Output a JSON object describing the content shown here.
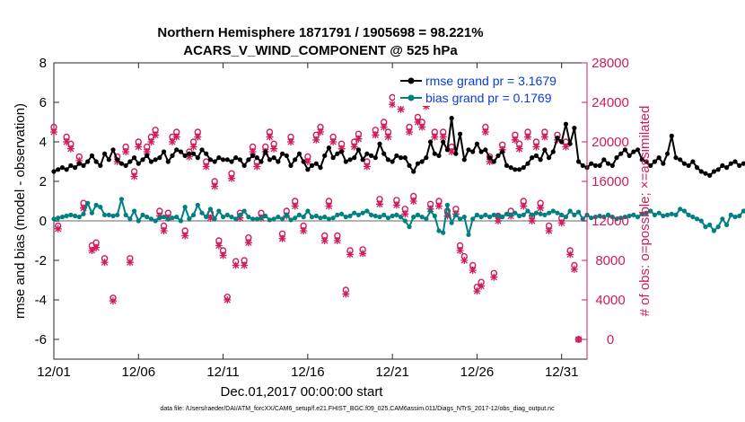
{
  "chart_data": {
    "type": "line",
    "title_line1": "Northern Hemisphere 1871791 / 1905698 = 98.221%",
    "title_line2": "ACARS_V_WIND_COMPONENT @ 525 hPa",
    "xlabel": "Dec.01,2017 00:00:00 start",
    "ylabel_left": "rmse and bias (model - observation)",
    "ylabel_right": "# of obs: o=possible; ×=assimilated",
    "footer": "data file: /Users/raeder/DAI/ATM_forcXX/CAM6_setup/f.e21.FHIST_BGC.f09_025.CAM6assim.011/Diags_NTrS_2017-12/obs_diag_output.nc",
    "xlim": [
      0,
      31.5
    ],
    "ylim_left": [
      -7,
      8
    ],
    "ylim_right": [
      -2000,
      28000
    ],
    "x_ticks": [
      0,
      5,
      10,
      15,
      20,
      25,
      30
    ],
    "x_tick_labels": [
      "12/01",
      "12/06",
      "12/11",
      "12/16",
      "12/21",
      "12/26",
      "12/31"
    ],
    "y_left_ticks": [
      -6,
      -4,
      -2,
      0,
      2,
      4,
      6,
      8
    ],
    "y_left_tick_labels": [
      "-6",
      "-4",
      "-2",
      "0",
      "2",
      "4",
      "6",
      "8"
    ],
    "y_right_ticks": [
      0,
      4000,
      8000,
      12000,
      16000,
      20000,
      24000,
      28000
    ],
    "y_right_tick_labels": [
      "0",
      "4000",
      "8000",
      "12000",
      "16000",
      "20000",
      "24000",
      "28000"
    ],
    "x_step_days": 0.25,
    "legend": [
      {
        "name": "rmse grand pr = 3.1679",
        "color": "#000000"
      },
      {
        "name": "bias grand pr = 0.1769",
        "color": "#008080"
      }
    ],
    "colors": {
      "rmse": "#000000",
      "bias": "#008080",
      "obs": "#d01c5c",
      "zero_line": "#b3b3b3",
      "axis_left": "#000000",
      "axis_right": "#d01c5c",
      "legend_text": "#0a3cd8"
    },
    "series": [
      {
        "name": "rmse",
        "values": [
          2.5,
          2.6,
          2.7,
          2.6,
          2.8,
          2.7,
          2.9,
          2.8,
          3.0,
          3.3,
          3.0,
          2.8,
          3.4,
          3.1,
          3.6,
          3.1,
          2.9,
          2.8,
          3.0,
          3.2,
          2.9,
          3.1,
          3.3,
          3.0,
          3.1,
          3.2,
          3.5,
          3.0,
          3.3,
          3.6,
          3.5,
          3.3,
          3.4,
          3.4,
          3.2,
          3.6,
          3.4,
          3.1,
          3.0,
          3.2,
          3.1,
          3.1,
          3.0,
          3.2,
          3.1,
          2.8,
          3.1,
          3.3,
          3.2,
          3.0,
          3.5,
          3.1,
          3.2,
          3.0,
          3.4,
          3.3,
          2.8,
          3.1,
          3.4,
          3.0,
          2.6,
          2.8,
          2.9,
          2.7,
          3.3,
          3.7,
          3.2,
          3.4,
          3.5,
          3.0,
          3.1,
          3.2,
          3.6,
          3.1,
          3.4,
          3.3,
          3.2,
          3.9,
          3.4,
          3.1,
          3.0,
          3.3,
          3.2,
          3.2,
          2.8,
          2.5,
          2.9,
          3.0,
          3.2,
          4.0,
          3.4,
          3.3,
          4.0,
          3.6,
          5.2,
          3.4,
          4.4,
          3.1,
          3.6,
          3.5,
          3.9,
          3.5,
          3.6,
          3.2,
          3.0,
          3.3,
          3.5,
          2.8,
          2.7,
          2.6,
          2.6,
          2.7,
          2.9,
          3.2,
          3.3,
          3.1,
          3.6,
          3.2,
          3.5,
          4.2,
          4.0,
          4.9,
          3.9,
          4.7,
          3.0,
          2.8,
          2.7,
          2.9,
          2.8,
          2.8,
          3.1,
          2.9,
          2.8,
          3.2,
          3.4,
          3.6,
          3.3,
          3.5,
          3.6,
          3.1,
          3.0,
          2.8,
          3.0,
          3.2,
          2.9,
          3.4,
          4.3,
          3.2,
          3.1,
          2.9,
          2.8,
          3.0,
          2.7,
          2.5,
          2.4,
          2.3,
          2.5,
          2.6,
          2.8,
          2.7,
          2.9,
          3.0,
          2.8,
          2.9,
          3.1,
          3.0,
          2.9,
          3.1,
          3.0,
          3.2,
          3.3,
          3.1,
          2.9,
          3.0,
          3.1,
          2.8,
          2.9,
          3.4,
          3.2,
          3.0,
          2.8,
          3.1,
          3.0,
          3.3,
          2.9,
          3.0,
          2.8,
          2.7,
          2.9,
          2.8,
          3.6,
          2.7
        ]
      },
      {
        "name": "bias",
        "values": [
          0.1,
          0.15,
          0.2,
          0.25,
          0.3,
          0.25,
          0.2,
          0.35,
          0.9,
          0.4,
          0.8,
          0.7,
          0.3,
          0.3,
          0.25,
          0.3,
          1.1,
          0.3,
          0.1,
          0.5,
          0.0,
          0.3,
          0.2,
          0.1,
          0.0,
          0.15,
          0.2,
          0.1,
          0.15,
          0.2,
          0.0,
          0.7,
          0.1,
          0.3,
          0.8,
          0.4,
          0.2,
          0.6,
          0.1,
          0.5,
          0.2,
          0.3,
          0.2,
          0.1,
          0.3,
          0.5,
          0.2,
          0.1,
          0.1,
          0.15,
          0.25,
          0.05,
          0.1,
          0.2,
          0.1,
          0.3,
          0.05,
          0.15,
          0.3,
          0.2,
          0.5,
          0.2,
          0.25,
          0.15,
          0.2,
          0.1,
          0.15,
          0.3,
          0.35,
          0.2,
          0.25,
          0.4,
          0.3,
          0.4,
          0.5,
          0.3,
          0.25,
          0.2,
          0.3,
          0.15,
          0.25,
          0.3,
          0.2,
          0.0,
          -0.3,
          0.2,
          0.3,
          0.2,
          0.1,
          0.5,
          0.25,
          -0.5,
          -0.6,
          0.8,
          -0.1,
          0.3,
          0.1,
          0.2,
          -0.7,
          0.1,
          0.3,
          0.2,
          0.3,
          0.2,
          0.3,
          0.25,
          0.2,
          0.35,
          0.3,
          0.4,
          0.25,
          0.3,
          0.5,
          0.3,
          0.4,
          0.35,
          0.3,
          0.4,
          0.5,
          0.4,
          0.3,
          0.2,
          0.5,
          0.3,
          0.45,
          0.1,
          0.3,
          0.15,
          0.2,
          0.25,
          0.2,
          0.3,
          0.2,
          0.1,
          0.15,
          0.2,
          0.25,
          0.3,
          0.2,
          0.35,
          0.4,
          0.5,
          0.3,
          0.4,
          0.25,
          0.3,
          0.35,
          0.3,
          0.6,
          0.5,
          0.3,
          0.2,
          0.1,
          0.0,
          -0.3,
          -0.2,
          -0.5,
          -0.3,
          0.1,
          -0.2,
          0.3,
          0.2,
          0.25,
          0.5,
          0.3,
          0.2,
          0.35,
          0.4,
          0.3,
          0.45,
          0.2,
          0.3,
          0.4,
          0.3,
          0.3,
          0.2,
          0.25,
          0.4,
          0.3,
          0.2,
          0.1,
          0.5,
          0.3,
          0.5,
          0.4,
          0.1,
          0.3,
          0.15,
          0.2,
          0.3,
          0.0,
          0.2
        ]
      }
    ],
    "obs_possible": [
      {
        "x": 0.0,
        "y": 21500
      },
      {
        "x": 0.25,
        "y": 11500
      },
      {
        "x": 0.75,
        "y": 20500
      },
      {
        "x": 1.0,
        "y": 19800
      },
      {
        "x": 1.5,
        "y": 18500
      },
      {
        "x": 1.75,
        "y": 13800
      },
      {
        "x": 2.25,
        "y": 9500
      },
      {
        "x": 2.5,
        "y": 9800
      },
      {
        "x": 3.0,
        "y": 8200
      },
      {
        "x": 3.5,
        "y": 4200
      },
      {
        "x": 3.75,
        "y": 18500
      },
      {
        "x": 4.25,
        "y": 19500
      },
      {
        "x": 4.5,
        "y": 8200
      },
      {
        "x": 4.75,
        "y": 17000
      },
      {
        "x": 5.0,
        "y": 20000
      },
      {
        "x": 5.5,
        "y": 19500
      },
      {
        "x": 5.75,
        "y": 20500
      },
      {
        "x": 6.0,
        "y": 21200
      },
      {
        "x": 6.25,
        "y": 13000
      },
      {
        "x": 6.5,
        "y": 11500
      },
      {
        "x": 6.75,
        "y": 12800
      },
      {
        "x": 7.0,
        "y": 20500
      },
      {
        "x": 7.25,
        "y": 21000
      },
      {
        "x": 7.75,
        "y": 11000
      },
      {
        "x": 8.0,
        "y": 19000
      },
      {
        "x": 8.25,
        "y": 20000
      },
      {
        "x": 8.5,
        "y": 21000
      },
      {
        "x": 9.0,
        "y": 18000
      },
      {
        "x": 9.25,
        "y": 12800
      },
      {
        "x": 9.5,
        "y": 16000
      },
      {
        "x": 9.75,
        "y": 10000
      },
      {
        "x": 10.0,
        "y": 9000
      },
      {
        "x": 10.25,
        "y": 4300
      },
      {
        "x": 10.5,
        "y": 16800
      },
      {
        "x": 10.75,
        "y": 7900
      },
      {
        "x": 11.0,
        "y": 12800
      },
      {
        "x": 11.25,
        "y": 8000
      },
      {
        "x": 11.5,
        "y": 10300
      },
      {
        "x": 11.75,
        "y": 19500
      },
      {
        "x": 12.0,
        "y": 18000
      },
      {
        "x": 12.25,
        "y": 12800
      },
      {
        "x": 12.5,
        "y": 19500
      },
      {
        "x": 12.75,
        "y": 21000
      },
      {
        "x": 13.0,
        "y": 19800
      },
      {
        "x": 13.5,
        "y": 10700
      },
      {
        "x": 13.75,
        "y": 13000
      },
      {
        "x": 14.0,
        "y": 20500
      },
      {
        "x": 14.25,
        "y": 14000
      },
      {
        "x": 14.75,
        "y": 11500
      },
      {
        "x": 15.0,
        "y": 18500
      },
      {
        "x": 15.5,
        "y": 20700
      },
      {
        "x": 15.75,
        "y": 21500
      },
      {
        "x": 16.0,
        "y": 10500
      },
      {
        "x": 16.25,
        "y": 14000
      },
      {
        "x": 16.5,
        "y": 20500
      },
      {
        "x": 16.75,
        "y": 10500
      },
      {
        "x": 17.0,
        "y": 19800
      },
      {
        "x": 17.25,
        "y": 5000
      },
      {
        "x": 17.5,
        "y": 9000
      },
      {
        "x": 17.75,
        "y": 20000
      },
      {
        "x": 18.0,
        "y": 20800
      },
      {
        "x": 18.25,
        "y": 9100
      },
      {
        "x": 18.5,
        "y": 18000
      },
      {
        "x": 19.0,
        "y": 21200
      },
      {
        "x": 19.25,
        "y": 14200
      },
      {
        "x": 19.5,
        "y": 22000
      },
      {
        "x": 19.75,
        "y": 21000
      },
      {
        "x": 20.0,
        "y": 24500
      },
      {
        "x": 20.25,
        "y": 14100
      },
      {
        "x": 20.5,
        "y": 24000
      },
      {
        "x": 20.75,
        "y": 13200
      },
      {
        "x": 21.0,
        "y": 21500
      },
      {
        "x": 21.25,
        "y": 14500
      },
      {
        "x": 21.5,
        "y": 22500
      },
      {
        "x": 21.75,
        "y": 22000
      },
      {
        "x": 22.0,
        "y": 24300
      },
      {
        "x": 22.25,
        "y": 13700
      },
      {
        "x": 22.5,
        "y": 21000
      },
      {
        "x": 22.75,
        "y": 14000
      },
      {
        "x": 23.0,
        "y": 21000
      },
      {
        "x": 23.25,
        "y": 13000
      },
      {
        "x": 23.5,
        "y": 19500
      },
      {
        "x": 23.75,
        "y": 13200
      },
      {
        "x": 24.0,
        "y": 9500
      },
      {
        "x": 24.25,
        "y": 8400
      },
      {
        "x": 24.75,
        "y": 7500
      },
      {
        "x": 25.0,
        "y": 5300
      },
      {
        "x": 25.25,
        "y": 5800
      },
      {
        "x": 25.5,
        "y": 21500
      },
      {
        "x": 25.75,
        "y": 18500
      },
      {
        "x": 26.0,
        "y": 6700
      },
      {
        "x": 26.25,
        "y": 12500
      },
      {
        "x": 26.5,
        "y": 19700
      },
      {
        "x": 27.0,
        "y": 13000
      },
      {
        "x": 27.25,
        "y": 20700
      },
      {
        "x": 27.5,
        "y": 19800
      },
      {
        "x": 27.75,
        "y": 14000
      },
      {
        "x": 28.0,
        "y": 21000
      },
      {
        "x": 28.25,
        "y": 12500
      },
      {
        "x": 28.5,
        "y": 20000
      },
      {
        "x": 28.75,
        "y": 13800
      },
      {
        "x": 29.0,
        "y": 21000
      },
      {
        "x": 29.25,
        "y": 11500
      },
      {
        "x": 29.75,
        "y": 20700
      },
      {
        "x": 30.0,
        "y": 12300
      },
      {
        "x": 30.25,
        "y": 20000
      },
      {
        "x": 30.5,
        "y": 9000
      },
      {
        "x": 30.75,
        "y": 7500
      },
      {
        "x": 31.0,
        "y": 0
      }
    ],
    "obs_assimilated": [
      {
        "x": 0.0,
        "y": 21000
      },
      {
        "x": 0.25,
        "y": 11200
      },
      {
        "x": 0.75,
        "y": 20000
      },
      {
        "x": 1.0,
        "y": 19300
      },
      {
        "x": 1.5,
        "y": 18100
      },
      {
        "x": 1.75,
        "y": 13300
      },
      {
        "x": 2.25,
        "y": 9000
      },
      {
        "x": 2.5,
        "y": 9300
      },
      {
        "x": 3.0,
        "y": 7800
      },
      {
        "x": 3.5,
        "y": 3900
      },
      {
        "x": 3.75,
        "y": 18000
      },
      {
        "x": 4.25,
        "y": 19000
      },
      {
        "x": 4.5,
        "y": 7800
      },
      {
        "x": 4.75,
        "y": 16500
      },
      {
        "x": 5.0,
        "y": 19500
      },
      {
        "x": 5.5,
        "y": 19000
      },
      {
        "x": 5.75,
        "y": 20000
      },
      {
        "x": 6.0,
        "y": 20700
      },
      {
        "x": 6.25,
        "y": 12500
      },
      {
        "x": 6.5,
        "y": 11000
      },
      {
        "x": 6.75,
        "y": 12300
      },
      {
        "x": 7.0,
        "y": 20000
      },
      {
        "x": 7.25,
        "y": 20500
      },
      {
        "x": 7.75,
        "y": 10500
      },
      {
        "x": 8.0,
        "y": 18500
      },
      {
        "x": 8.25,
        "y": 19500
      },
      {
        "x": 8.5,
        "y": 20500
      },
      {
        "x": 9.0,
        "y": 17500
      },
      {
        "x": 9.25,
        "y": 12300
      },
      {
        "x": 9.5,
        "y": 15500
      },
      {
        "x": 9.75,
        "y": 9500
      },
      {
        "x": 10.0,
        "y": 8500
      },
      {
        "x": 10.25,
        "y": 4000
      },
      {
        "x": 10.5,
        "y": 16300
      },
      {
        "x": 10.75,
        "y": 7500
      },
      {
        "x": 11.0,
        "y": 12300
      },
      {
        "x": 11.25,
        "y": 7500
      },
      {
        "x": 11.5,
        "y": 9800
      },
      {
        "x": 11.75,
        "y": 19000
      },
      {
        "x": 12.0,
        "y": 17500
      },
      {
        "x": 12.25,
        "y": 12300
      },
      {
        "x": 12.5,
        "y": 19000
      },
      {
        "x": 12.75,
        "y": 20500
      },
      {
        "x": 13.0,
        "y": 19300
      },
      {
        "x": 13.5,
        "y": 10200
      },
      {
        "x": 13.75,
        "y": 12500
      },
      {
        "x": 14.0,
        "y": 20000
      },
      {
        "x": 14.25,
        "y": 13500
      },
      {
        "x": 14.75,
        "y": 11000
      },
      {
        "x": 15.0,
        "y": 18000
      },
      {
        "x": 15.5,
        "y": 20200
      },
      {
        "x": 15.75,
        "y": 21000
      },
      {
        "x": 16.0,
        "y": 10000
      },
      {
        "x": 16.25,
        "y": 13500
      },
      {
        "x": 16.5,
        "y": 20000
      },
      {
        "x": 16.75,
        "y": 10000
      },
      {
        "x": 17.0,
        "y": 19300
      },
      {
        "x": 17.25,
        "y": 4600
      },
      {
        "x": 17.5,
        "y": 8600
      },
      {
        "x": 17.75,
        "y": 19500
      },
      {
        "x": 18.0,
        "y": 20300
      },
      {
        "x": 18.25,
        "y": 8700
      },
      {
        "x": 18.5,
        "y": 17500
      },
      {
        "x": 19.0,
        "y": 20700
      },
      {
        "x": 19.25,
        "y": 13700
      },
      {
        "x": 19.5,
        "y": 21500
      },
      {
        "x": 19.75,
        "y": 20500
      },
      {
        "x": 20.0,
        "y": 23800
      },
      {
        "x": 20.25,
        "y": 13600
      },
      {
        "x": 20.5,
        "y": 23300
      },
      {
        "x": 20.75,
        "y": 12700
      },
      {
        "x": 21.0,
        "y": 21000
      },
      {
        "x": 21.25,
        "y": 14000
      },
      {
        "x": 21.5,
        "y": 22000
      },
      {
        "x": 21.75,
        "y": 21500
      },
      {
        "x": 22.0,
        "y": 23600
      },
      {
        "x": 22.25,
        "y": 13200
      },
      {
        "x": 22.5,
        "y": 20500
      },
      {
        "x": 22.75,
        "y": 13500
      },
      {
        "x": 23.0,
        "y": 20500
      },
      {
        "x": 23.25,
        "y": 12500
      },
      {
        "x": 23.5,
        "y": 19000
      },
      {
        "x": 23.75,
        "y": 12700
      },
      {
        "x": 24.0,
        "y": 9000
      },
      {
        "x": 24.25,
        "y": 8000
      },
      {
        "x": 24.75,
        "y": 7000
      },
      {
        "x": 25.0,
        "y": 4900
      },
      {
        "x": 25.25,
        "y": 5400
      },
      {
        "x": 25.5,
        "y": 21000
      },
      {
        "x": 25.75,
        "y": 18000
      },
      {
        "x": 26.0,
        "y": 6300
      },
      {
        "x": 26.25,
        "y": 12000
      },
      {
        "x": 26.5,
        "y": 19200
      },
      {
        "x": 27.0,
        "y": 12500
      },
      {
        "x": 27.25,
        "y": 20200
      },
      {
        "x": 27.5,
        "y": 19300
      },
      {
        "x": 27.75,
        "y": 13500
      },
      {
        "x": 28.0,
        "y": 20500
      },
      {
        "x": 28.25,
        "y": 12000
      },
      {
        "x": 28.5,
        "y": 19500
      },
      {
        "x": 28.75,
        "y": 13300
      },
      {
        "x": 29.0,
        "y": 20500
      },
      {
        "x": 29.25,
        "y": 11000
      },
      {
        "x": 29.75,
        "y": 20200
      },
      {
        "x": 30.0,
        "y": 11800
      },
      {
        "x": 30.25,
        "y": 19500
      },
      {
        "x": 30.5,
        "y": 8600
      },
      {
        "x": 30.75,
        "y": 7100
      },
      {
        "x": 31.0,
        "y": 0
      }
    ]
  }
}
